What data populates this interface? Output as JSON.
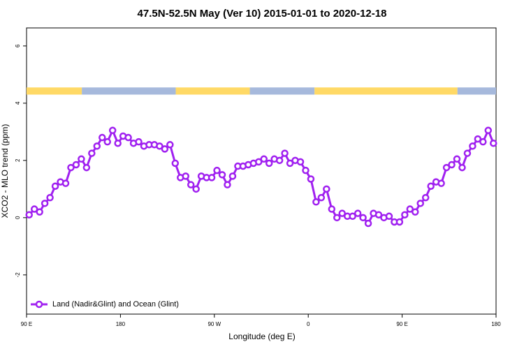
{
  "chart_data": {
    "type": "line",
    "title": "47.5N-52.5N May (Ver 10)   2015-01-01 to 2020-12-18",
    "xlabel": "Longitude (deg E)",
    "ylabel": "XCO2 - MLO trend (ppm)",
    "x": [
      92.5,
      97.5,
      102.5,
      107.5,
      112.5,
      117.5,
      122.5,
      127.5,
      132.5,
      137.5,
      142.5,
      147.5,
      152.5,
      157.5,
      162.5,
      167.5,
      172.5,
      177.5,
      182.5,
      187.5,
      192.5,
      197.5,
      202.5,
      207.5,
      212.5,
      217.5,
      222.5,
      227.5,
      232.5,
      237.5,
      242.5,
      247.5,
      252.5,
      257.5,
      262.5,
      267.5,
      272.5,
      277.5,
      282.5,
      287.5,
      292.5,
      297.5,
      302.5,
      307.5,
      312.5,
      317.5,
      322.5,
      327.5,
      332.5,
      337.5,
      342.5,
      347.5,
      352.5,
      357.5,
      362.5,
      367.5,
      372.5,
      377.5,
      382.5,
      387.5,
      392.5,
      397.5,
      402.5,
      407.5,
      412.5,
      417.5,
      422.5,
      427.5,
      432.5,
      437.5,
      442.5,
      447.5,
      452.5,
      457.5,
      462.5,
      467.5,
      472.5,
      477.5,
      482.5,
      487.5,
      492.5,
      497.5,
      502.5,
      507.5,
      512.5,
      517.5,
      522.5,
      527.5,
      532.5,
      537.5
    ],
    "series": [
      {
        "name": "Land (Nadir&Glint) and Ocean (Glint)",
        "color": "#a020f0",
        "values": [
          0.1,
          0.3,
          0.2,
          0.5,
          0.7,
          1.1,
          1.25,
          1.2,
          1.75,
          1.85,
          2.05,
          1.75,
          2.25,
          2.5,
          2.8,
          2.65,
          3.05,
          2.6,
          2.85,
          2.8,
          2.6,
          2.65,
          2.5,
          2.55,
          2.55,
          2.5,
          2.4,
          2.55,
          1.9,
          1.4,
          1.45,
          1.15,
          1.0,
          1.45,
          1.4,
          1.4,
          1.65,
          1.5,
          1.15,
          1.45,
          1.8,
          1.8,
          1.85,
          1.9,
          1.95,
          2.05,
          1.9,
          2.05,
          2.0,
          2.25,
          1.9,
          2.0,
          1.95,
          1.65,
          1.35,
          0.55,
          0.7,
          1.0,
          0.3,
          0.0,
          0.15,
          0.05,
          0.05,
          0.15,
          0.0,
          -0.2,
          0.15,
          0.1,
          0.0,
          0.05,
          -0.15,
          -0.15,
          0.1,
          0.3,
          0.2,
          0.5,
          0.7,
          1.1,
          1.25,
          1.2,
          1.75,
          1.85,
          2.05,
          1.75,
          2.25,
          2.5,
          2.75,
          2.65,
          3.05,
          2.6
        ]
      }
    ],
    "xlim": [
      90,
      540
    ],
    "xticks": [
      {
        "value": 90,
        "label": "90 E"
      },
      180,
      {
        "value": 270,
        "label": "90 W"
      },
      {
        "value": 360,
        "label": "0"
      },
      {
        "value": 450,
        "label": "90 E"
      },
      {
        "value": 540,
        "label": "180"
      }
    ],
    "ylim": [
      -3.37,
      6.63
    ],
    "yticks": [
      -2,
      0,
      2,
      4,
      6
    ],
    "legend": "bottom left",
    "band_ylim": [
      4.3,
      4.55
    ],
    "band": [
      {
        "start": 90,
        "end": 143,
        "color": "#ffd966"
      },
      {
        "start": 143,
        "end": 233,
        "color": "#a6b9dc"
      },
      {
        "start": 233,
        "end": 304,
        "color": "#ffd966"
      },
      {
        "start": 304,
        "end": 366,
        "color": "#a6b9dc"
      },
      {
        "start": 366,
        "end": 503,
        "color": "#ffd966"
      },
      {
        "start": 503,
        "end": 540,
        "color": "#a6b9dc"
      }
    ]
  }
}
